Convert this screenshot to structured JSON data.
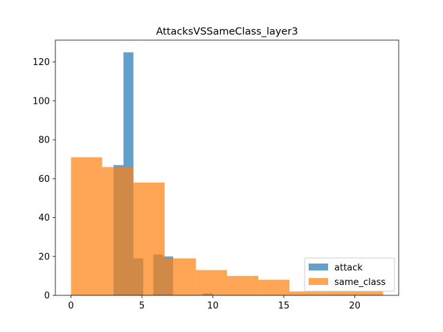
{
  "chart_data": {
    "type": "histogram",
    "title": "AttacksVSSameClass_layer3",
    "xlabel": "",
    "ylabel": "",
    "xlim": [
      -1.1,
      23.1
    ],
    "ylim": [
      0,
      131.25
    ],
    "xticks": [
      0,
      5,
      10,
      15,
      20
    ],
    "yticks": [
      0,
      20,
      40,
      60,
      80,
      100,
      120
    ],
    "grid": false,
    "legend_position": "lower right",
    "series": [
      {
        "name": "attack",
        "color": "#1f77b4",
        "alpha": 0.7,
        "bins": [
          {
            "x0": 3.0,
            "x1": 3.7,
            "value": 67
          },
          {
            "x0": 3.7,
            "x1": 4.4,
            "value": 125
          },
          {
            "x0": 4.4,
            "x1": 5.1,
            "value": 19
          },
          {
            "x0": 5.1,
            "x1": 5.8,
            "value": 0
          },
          {
            "x0": 5.8,
            "x1": 6.5,
            "value": 21
          },
          {
            "x0": 6.5,
            "x1": 7.2,
            "value": 20
          },
          {
            "x0": 7.2,
            "x1": 7.9,
            "value": 0
          },
          {
            "x0": 7.9,
            "x1": 8.6,
            "value": 0
          },
          {
            "x0": 8.6,
            "x1": 9.3,
            "value": 0
          },
          {
            "x0": 9.3,
            "x1": 10.0,
            "value": 1
          }
        ]
      },
      {
        "name": "same_class",
        "color": "#ff7f0e",
        "alpha": 0.7,
        "bins": [
          {
            "x0": 0.0,
            "x1": 2.2,
            "value": 71
          },
          {
            "x0": 2.2,
            "x1": 4.4,
            "value": 66
          },
          {
            "x0": 4.4,
            "x1": 6.6,
            "value": 58
          },
          {
            "x0": 6.6,
            "x1": 8.8,
            "value": 19
          },
          {
            "x0": 8.8,
            "x1": 11.0,
            "value": 13
          },
          {
            "x0": 11.0,
            "x1": 13.2,
            "value": 10
          },
          {
            "x0": 13.2,
            "x1": 15.4,
            "value": 8
          },
          {
            "x0": 15.4,
            "x1": 17.6,
            "value": 2
          },
          {
            "x0": 17.6,
            "x1": 19.8,
            "value": 2
          },
          {
            "x0": 19.8,
            "x1": 22.0,
            "value": 2
          }
        ]
      }
    ]
  }
}
